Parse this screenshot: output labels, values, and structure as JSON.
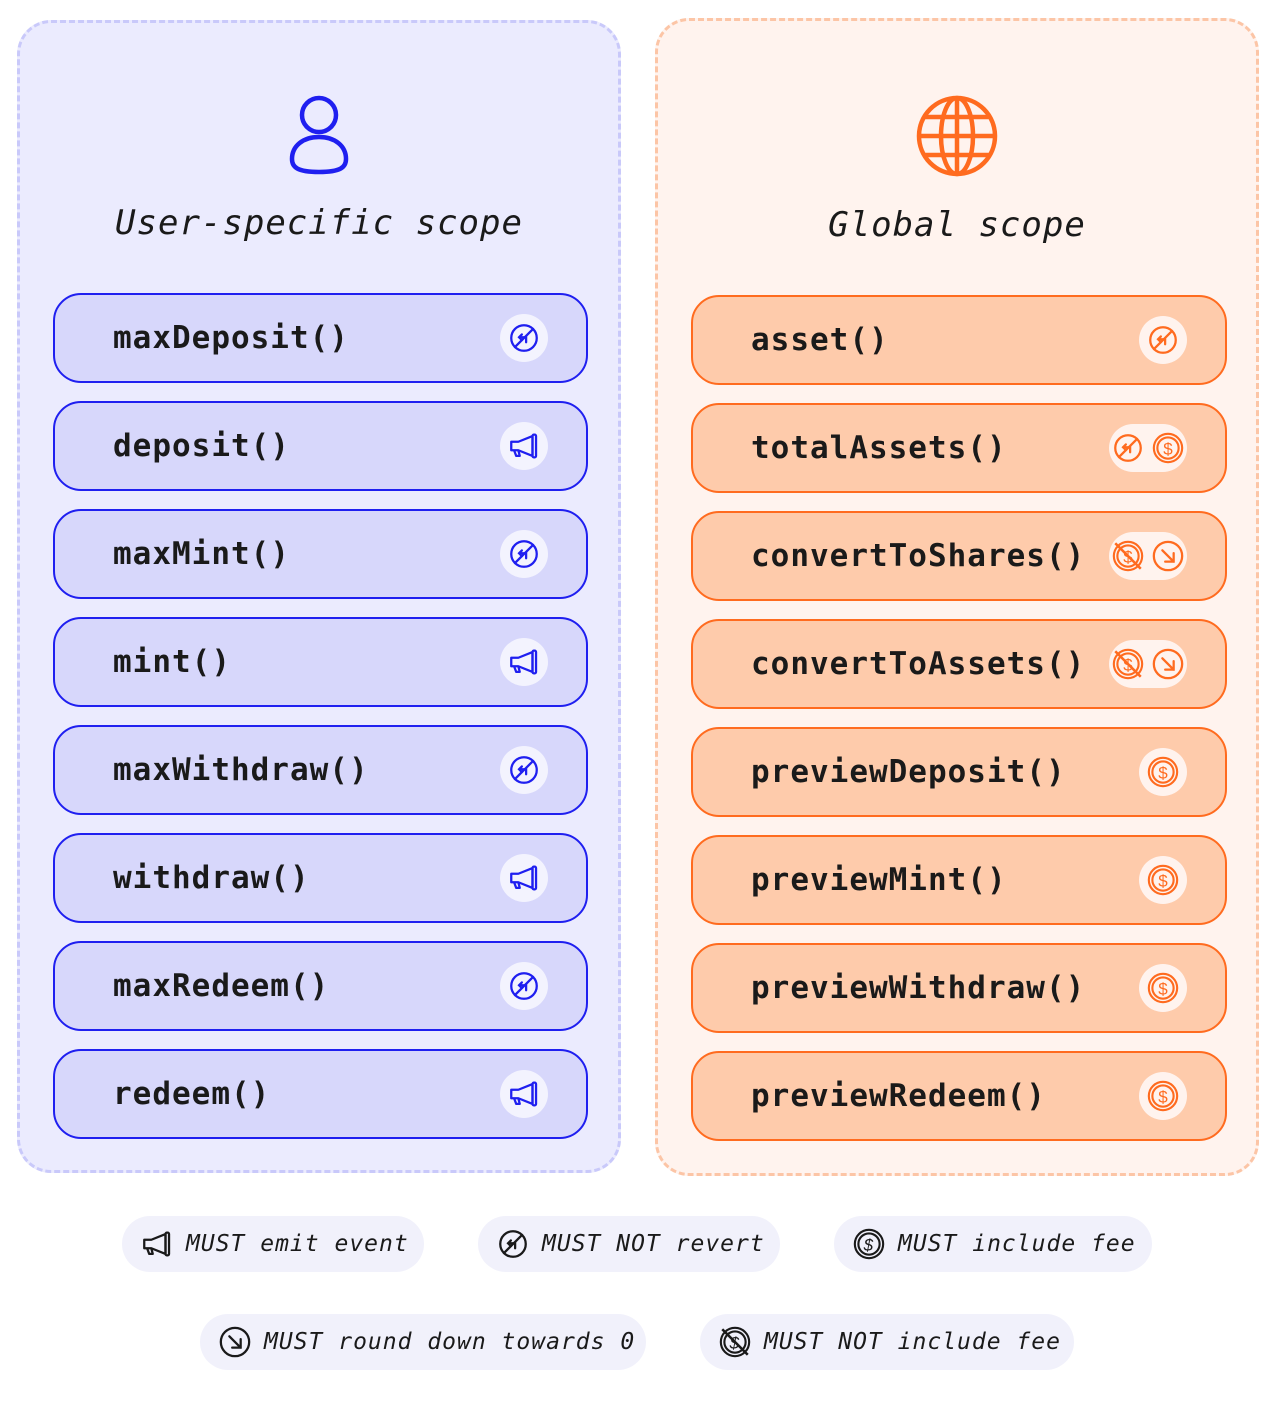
{
  "colors": {
    "user_accent": "#1f1ff0",
    "global_accent": "#ff6b1f"
  },
  "user": {
    "title": "User-specific scope",
    "icon": "user-icon",
    "functions": [
      {
        "name": "maxDeposit()",
        "icons": [
          "no-revert-icon"
        ]
      },
      {
        "name": "deposit()",
        "icons": [
          "megaphone-icon"
        ]
      },
      {
        "name": "maxMint()",
        "icons": [
          "no-revert-icon"
        ]
      },
      {
        "name": "mint()",
        "icons": [
          "megaphone-icon"
        ]
      },
      {
        "name": "maxWithdraw()",
        "icons": [
          "no-revert-icon"
        ]
      },
      {
        "name": "withdraw()",
        "icons": [
          "megaphone-icon"
        ]
      },
      {
        "name": "maxRedeem()",
        "icons": [
          "no-revert-icon"
        ]
      },
      {
        "name": "redeem()",
        "icons": [
          "megaphone-icon"
        ]
      }
    ]
  },
  "global": {
    "title": "Global scope",
    "icon": "globe-icon",
    "functions": [
      {
        "name": "asset()",
        "icons": [
          "no-revert-icon"
        ]
      },
      {
        "name": "totalAssets()",
        "icons": [
          "no-revert-icon",
          "fee-icon"
        ]
      },
      {
        "name": "convertToShares()",
        "icons": [
          "no-fee-icon",
          "round-down-icon"
        ]
      },
      {
        "name": "convertToAssets()",
        "icons": [
          "no-fee-icon",
          "round-down-icon"
        ]
      },
      {
        "name": "previewDeposit()",
        "icons": [
          "fee-icon"
        ]
      },
      {
        "name": "previewMint()",
        "icons": [
          "fee-icon"
        ]
      },
      {
        "name": "previewWithdraw()",
        "icons": [
          "fee-icon"
        ]
      },
      {
        "name": "previewRedeem()",
        "icons": [
          "fee-icon"
        ]
      }
    ]
  },
  "legend": [
    {
      "icon": "megaphone-icon",
      "label": "MUST emit event"
    },
    {
      "icon": "no-revert-icon",
      "label": "MUST NOT revert"
    },
    {
      "icon": "fee-icon",
      "label": "MUST include fee"
    },
    {
      "icon": "round-down-icon",
      "label": "MUST round down towards 0"
    },
    {
      "icon": "no-fee-icon",
      "label": "MUST NOT include fee"
    }
  ]
}
